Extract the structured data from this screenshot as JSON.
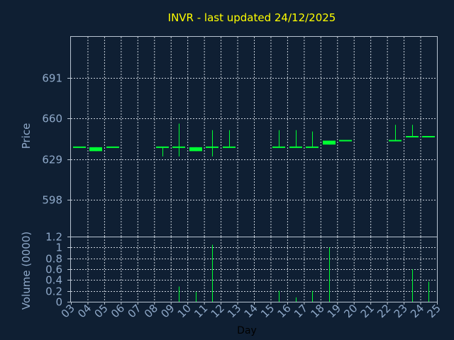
{
  "chart_data": {
    "type": "candlestick",
    "title": "INVR - last updated 24/12/2025",
    "xlabel": "Day",
    "x_ticks": [
      "03",
      "04",
      "05",
      "06",
      "07",
      "08",
      "09",
      "10",
      "11",
      "12",
      "13",
      "14",
      "15",
      "16",
      "17",
      "18",
      "19",
      "20",
      "21",
      "22",
      "23",
      "24",
      "25"
    ],
    "price_panel": {
      "ylabel": "Price",
      "ylim": [
        570,
        722
      ],
      "y_ticks": [
        598,
        629,
        660,
        691
      ],
      "grid": true,
      "candles": [
        {
          "day": "03",
          "open": 638,
          "high": 638,
          "low": 638,
          "close": 638
        },
        {
          "day": "04",
          "open": 638,
          "high": 638,
          "low": 635,
          "close": 635
        },
        {
          "day": "05",
          "open": 638,
          "high": 638,
          "low": 638,
          "close": 638
        },
        {
          "day": "08",
          "open": 638,
          "high": 638,
          "low": 631,
          "close": 638
        },
        {
          "day": "09",
          "open": 638,
          "high": 656,
          "low": 631,
          "close": 638
        },
        {
          "day": "10",
          "open": 638,
          "high": 638,
          "low": 635,
          "close": 635
        },
        {
          "day": "11",
          "open": 638,
          "high": 651,
          "low": 631,
          "close": 638
        },
        {
          "day": "12",
          "open": 638,
          "high": 651,
          "low": 638,
          "close": 638
        },
        {
          "day": "15",
          "open": 638,
          "high": 651,
          "low": 638,
          "close": 638
        },
        {
          "day": "16",
          "open": 638,
          "high": 651,
          "low": 638,
          "close": 638
        },
        {
          "day": "17",
          "open": 638,
          "high": 650,
          "low": 638,
          "close": 638
        },
        {
          "day": "18",
          "open": 640,
          "high": 643,
          "low": 640,
          "close": 643
        },
        {
          "day": "19",
          "open": 643,
          "high": 643,
          "low": 643,
          "close": 643
        },
        {
          "day": "22",
          "open": 643,
          "high": 655,
          "low": 643,
          "close": 643
        },
        {
          "day": "23",
          "open": 646,
          "high": 655,
          "low": 646,
          "close": 646
        },
        {
          "day": "24",
          "open": 646,
          "high": 646,
          "low": 646,
          "close": 646
        }
      ]
    },
    "volume_panel": {
      "ylabel": "Volume (0000)",
      "ylim": [
        0,
        1.2
      ],
      "y_ticks": [
        "0",
        "0.2",
        "0.4",
        "0.6",
        "0.8",
        "1",
        "1.2"
      ],
      "grid": true,
      "bars": [
        {
          "day": "09",
          "value": 0.28
        },
        {
          "day": "10",
          "value": 0.18
        },
        {
          "day": "11",
          "value": 1.05
        },
        {
          "day": "15",
          "value": 0.2
        },
        {
          "day": "16",
          "value": 0.08
        },
        {
          "day": "17",
          "value": 0.2
        },
        {
          "day": "18",
          "value": 1.0
        },
        {
          "day": "23",
          "value": 0.6
        },
        {
          "day": "24",
          "value": 0.37
        }
      ]
    },
    "colors": {
      "background": "#0f1f33",
      "plot_background": "#0f1f33",
      "candle": "#00ff33",
      "volume_bar": "#00ff33",
      "title": "#ffff00",
      "axis_text": "#8fa9c9",
      "frame": "#b8c4d2"
    }
  }
}
